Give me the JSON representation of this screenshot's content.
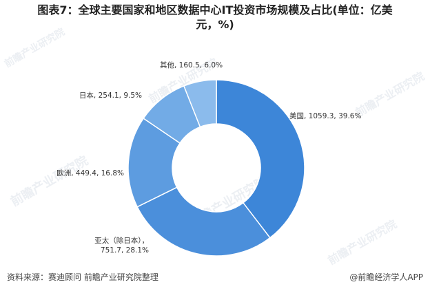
{
  "title_line1": "图表7：全球主要国家和地区数据中心IT投资市场规模及占比(单位：亿美",
  "title_line2": "元，%)",
  "footer": {
    "source": "资料来源：赛迪顾问 前瞻产业研究院整理",
    "credit": "@前瞻经济学人APP"
  },
  "watermark_text": "前瞻产业研究院",
  "chart_data": {
    "type": "pie",
    "variant": "donut",
    "unit": "亿美元",
    "slices": [
      {
        "name": "美国",
        "value": 1059.3,
        "percent": 39.6,
        "color": "#3d86d8",
        "label": "美国, 1059.3, 39.6%"
      },
      {
        "name": "亚太（除日本）",
        "value": 751.7,
        "percent": 28.1,
        "color": "#4b8fdb",
        "label_line1": "亚太（除日本），",
        "label_line2": "751.7, 28.1%"
      },
      {
        "name": "欧洲",
        "value": 449.4,
        "percent": 16.8,
        "color": "#5d9ce0",
        "label": "欧洲, 449.4, 16.8%"
      },
      {
        "name": "日本",
        "value": 254.1,
        "percent": 9.5,
        "color": "#72abe6",
        "label": "日本, 254.1, 9.5%"
      },
      {
        "name": "其他",
        "value": 160.5,
        "percent": 6.0,
        "color": "#8bbbec",
        "label": "其他, 160.5, 6.0%"
      }
    ]
  }
}
